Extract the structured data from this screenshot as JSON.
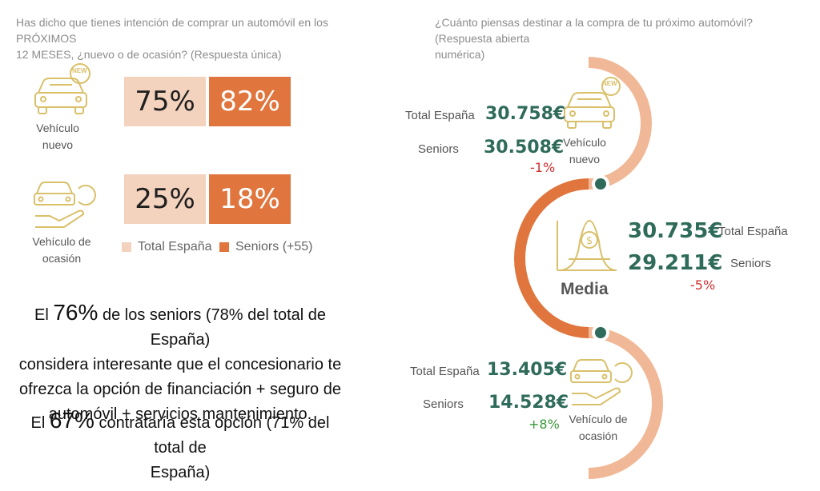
{
  "left": {
    "question": [
      "Has dicho que tienes intención de comprar un automóvil en los PRÓXIMOS",
      "12 MESES, ¿nuevo o de ocasión? (Respuesta única)"
    ],
    "badge_new": "NEW",
    "rows": [
      {
        "label": [
          "Vehículo",
          "nuevo"
        ],
        "total": "75%",
        "seniors": "82%"
      },
      {
        "label": [
          "Vehículo de",
          "ocasión"
        ],
        "total": "25%",
        "seniors": "18%"
      }
    ],
    "legend": {
      "total": "Total España",
      "seniors": "Seniors (+55)"
    },
    "statement1": {
      "pre": "El ",
      "pct": "76%",
      "rest": [
        " de los seniors (78% del total de España)",
        "considera interesante que el concesionario te",
        "ofrezca la opción de financiación + seguro de",
        "automóvil + servicios mantenimiento."
      ]
    },
    "statement2": {
      "pre": "El ",
      "pct": "67%",
      "rest": [
        " contrataría esta opción (71% del total de",
        "España)"
      ]
    }
  },
  "right": {
    "question": [
      "¿Cuánto piensas destinar a la compra de tu próximo automóvil? (Respuesta abierta",
      "numérica)"
    ],
    "badge_new": "NEW",
    "nuevo": {
      "label": [
        "Vehículo",
        "nuevo"
      ],
      "total_label": "Total España",
      "total": "30.758€",
      "seniors_label": "Seniors",
      "seniors": "30.508€",
      "diff": "-1%"
    },
    "media": {
      "label": "Media",
      "total": "30.735€",
      "total_label": "Total España",
      "seniors": "29.211€",
      "seniors_label": "Seniors",
      "diff": "-5%"
    },
    "ocasion": {
      "label": [
        "Vehículo de",
        "ocasión"
      ],
      "total_label": "Total España",
      "total": "13.405€",
      "seniors_label": "Seniors",
      "seniors": "14.528€",
      "diff": "+8%"
    }
  },
  "colors": {
    "light": "#f3d2be",
    "dark": "#e0753d",
    "green": "#2f6b5a",
    "icon": "#d9c06a",
    "neg": "#d03030",
    "pos": "#3a9a3a"
  },
  "chart_data": {
    "type": "bar",
    "categories": [
      "Vehículo nuevo",
      "Vehículo de ocasión"
    ],
    "series": [
      {
        "name": "Total España",
        "values": [
          75,
          25
        ]
      },
      {
        "name": "Seniors (+55)",
        "values": [
          82,
          18
        ]
      }
    ],
    "unit": "%"
  }
}
